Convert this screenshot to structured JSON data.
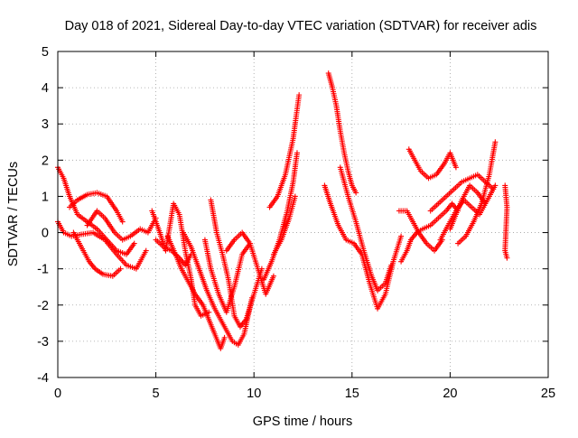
{
  "chart_data": {
    "type": "scatter",
    "title": "Day 018 of 2021, Sidereal Day-to-day VTEC variation (SDTVAR) for receiver adis",
    "xlabel": "GPS time / hours",
    "ylabel": "SDTVAR / TECUs",
    "xlim": [
      0,
      25
    ],
    "ylim": [
      -4,
      5
    ],
    "x_ticks": [
      0,
      5,
      10,
      15,
      20,
      25
    ],
    "x_tick_labels": [
      "0",
      "5",
      "10",
      "15",
      "20",
      "25"
    ],
    "y_ticks": [
      -4,
      -3,
      -2,
      -1,
      0,
      1,
      2,
      3,
      4,
      5
    ],
    "y_tick_labels": [
      "-4",
      "-3",
      "-2",
      "-1",
      "0",
      "1",
      "2",
      "3",
      "4",
      "5"
    ],
    "grid": true,
    "marker": "+",
    "color": "#ff0000",
    "series": [
      {
        "name": "s1",
        "x": [
          0.0,
          0.3,
          0.6,
          1.0,
          1.5,
          2.0,
          2.5,
          3.0,
          3.5,
          3.9
        ],
        "y": [
          1.8,
          1.5,
          1.0,
          0.5,
          0.3,
          0.1,
          -0.2,
          -0.5,
          -0.6,
          -0.3
        ]
      },
      {
        "name": "s2",
        "x": [
          0.0,
          0.3,
          0.7,
          1.2,
          1.8,
          2.4,
          3.0,
          3.5,
          4.0,
          4.5
        ],
        "y": [
          0.3,
          0.0,
          -0.1,
          -0.05,
          0.0,
          -0.2,
          -0.6,
          -0.9,
          -1.0,
          -0.5
        ]
      },
      {
        "name": "s3",
        "x": [
          0.6,
          1.0,
          1.5,
          2.0,
          2.5,
          3.0,
          3.3
        ],
        "y": [
          0.7,
          0.9,
          1.05,
          1.1,
          1.0,
          0.6,
          0.3
        ]
      },
      {
        "name": "s4",
        "x": [
          0.8,
          1.2,
          1.6,
          1.9,
          2.3,
          2.8,
          3.2
        ],
        "y": [
          0.0,
          -0.4,
          -0.8,
          -1.0,
          -1.15,
          -1.2,
          -1.0
        ]
      },
      {
        "name": "s5",
        "x": [
          1.5,
          2.0,
          2.4,
          2.9,
          3.3,
          3.7,
          4.2,
          4.6,
          5.0
        ],
        "y": [
          0.2,
          0.6,
          0.4,
          0.0,
          -0.2,
          -0.1,
          0.1,
          0.0,
          0.4
        ]
      },
      {
        "name": "s6",
        "x": [
          4.8,
          5.2,
          5.5,
          5.9,
          6.2,
          6.5,
          6.8,
          7.0,
          7.3,
          7.7
        ],
        "y": [
          0.6,
          0.0,
          -0.5,
          0.8,
          0.5,
          -0.5,
          -1.3,
          -2.0,
          -2.3,
          -2.2
        ]
      },
      {
        "name": "s7",
        "x": [
          5.0,
          5.4,
          5.8,
          6.2,
          6.5,
          6.8
        ],
        "y": [
          -0.2,
          -0.4,
          -0.5,
          -0.7,
          -0.9,
          -0.6
        ]
      },
      {
        "name": "s8",
        "x": [
          5.6,
          6.0,
          6.3,
          6.7,
          7.0,
          7.4,
          7.7,
          8.0,
          8.3,
          8.5
        ],
        "y": [
          -0.1,
          -0.6,
          -1.0,
          -1.4,
          -1.7,
          -2.0,
          -2.4,
          -2.8,
          -3.2,
          -2.9
        ]
      },
      {
        "name": "s9",
        "x": [
          6.4,
          6.8,
          7.2,
          7.6,
          8.0,
          8.3,
          8.6,
          8.9,
          9.2,
          9.5,
          9.9
        ],
        "y": [
          0.0,
          -0.4,
          -1.0,
          -1.6,
          -2.1,
          -2.4,
          -2.7,
          -3.0,
          -3.1,
          -2.8,
          -1.8
        ]
      },
      {
        "name": "s10",
        "x": [
          7.8,
          8.1,
          8.4,
          8.7,
          9.0,
          9.3,
          9.6,
          10.0,
          10.4
        ],
        "y": [
          0.9,
          0.0,
          -0.6,
          -1.3,
          -2.3,
          -2.6,
          -2.4,
          -1.7,
          -1.0
        ]
      },
      {
        "name": "s11",
        "x": [
          7.5,
          7.8,
          8.2,
          8.6,
          9.0,
          9.4,
          9.8
        ],
        "y": [
          -0.2,
          -1.0,
          -1.7,
          -2.2,
          -1.5,
          -0.6,
          -0.3
        ]
      },
      {
        "name": "s12",
        "x": [
          8.6,
          9.0,
          9.4,
          9.8,
          10.2,
          10.6,
          11.0
        ],
        "y": [
          -0.5,
          -0.2,
          0.0,
          -0.3,
          -1.0,
          -1.7,
          -1.2
        ]
      },
      {
        "name": "s13",
        "x": [
          10.8,
          11.2,
          11.6,
          12.0,
          12.3
        ],
        "y": [
          0.7,
          1.0,
          1.6,
          2.6,
          3.8
        ]
      },
      {
        "name": "s14",
        "x": [
          10.5,
          10.9,
          11.3,
          11.7,
          12.0,
          12.2
        ],
        "y": [
          -1.3,
          -0.8,
          -0.2,
          0.6,
          1.4,
          2.2
        ]
      },
      {
        "name": "s15",
        "x": [
          11.0,
          11.4,
          11.8,
          12.1
        ],
        "y": [
          -0.6,
          -0.2,
          0.4,
          1.0
        ]
      },
      {
        "name": "s16",
        "x": [
          13.8,
          14.0,
          14.2,
          14.4,
          14.6,
          14.8,
          15.0,
          15.2
        ],
        "y": [
          4.4,
          4.0,
          3.5,
          2.8,
          2.2,
          1.7,
          1.3,
          1.1
        ]
      },
      {
        "name": "s17",
        "x": [
          13.6,
          13.9,
          14.3,
          14.7,
          15.1,
          15.5,
          15.9,
          16.3,
          16.7,
          17.1,
          17.5
        ],
        "y": [
          1.3,
          0.8,
          0.2,
          -0.2,
          -0.3,
          -0.6,
          -1.4,
          -2.1,
          -1.7,
          -0.8,
          -0.1
        ]
      },
      {
        "name": "s18",
        "x": [
          14.4,
          14.8,
          15.2,
          15.6,
          16.0,
          16.3,
          16.7,
          17.0
        ],
        "y": [
          1.8,
          1.0,
          0.3,
          -0.5,
          -1.2,
          -1.6,
          -1.4,
          -0.9
        ]
      },
      {
        "name": "s19",
        "x": [
          17.4,
          17.8,
          18.1,
          18.4,
          18.8,
          19.2,
          19.6
        ],
        "y": [
          0.6,
          0.6,
          0.3,
          0.0,
          -0.3,
          -0.5,
          -0.2
        ]
      },
      {
        "name": "s20",
        "x": [
          17.5,
          17.8,
          18.0,
          18.3,
          18.6,
          19.0,
          19.4,
          19.8,
          20.1,
          20.4
        ],
        "y": [
          -0.8,
          -0.5,
          -0.2,
          0.0,
          0.1,
          0.2,
          0.4,
          0.6,
          0.8,
          0.6
        ]
      },
      {
        "name": "s21",
        "x": [
          17.9,
          18.2,
          18.5,
          18.9,
          19.3,
          19.7,
          20.0,
          20.3
        ],
        "y": [
          2.3,
          2.0,
          1.7,
          1.5,
          1.6,
          1.9,
          2.2,
          1.8
        ]
      },
      {
        "name": "s22",
        "x": [
          19.0,
          19.4,
          19.8,
          20.2,
          20.6,
          21.0,
          21.4,
          21.8,
          22.2
        ],
        "y": [
          0.6,
          0.8,
          1.0,
          1.2,
          1.4,
          1.5,
          1.6,
          1.4,
          1.2
        ]
      },
      {
        "name": "s23",
        "x": [
          19.5,
          19.9,
          20.3,
          20.7,
          21.1,
          21.5,
          21.9,
          22.3
        ],
        "y": [
          -0.2,
          0.2,
          0.6,
          0.9,
          0.7,
          0.5,
          0.9,
          1.3
        ]
      },
      {
        "name": "s24",
        "x": [
          20.4,
          20.8,
          21.2,
          21.6,
          22.0,
          22.3
        ],
        "y": [
          -0.3,
          -0.1,
          0.3,
          0.8,
          1.6,
          2.5
        ]
      },
      {
        "name": "s25",
        "x": [
          20.0,
          20.3,
          20.6,
          21.0,
          21.4,
          21.8
        ],
        "y": [
          0.1,
          0.5,
          0.9,
          1.3,
          1.1,
          0.8
        ]
      },
      {
        "name": "s26",
        "x": [
          22.8,
          22.9,
          22.8,
          22.9
        ],
        "y": [
          1.3,
          0.7,
          -0.5,
          -0.7
        ]
      }
    ]
  }
}
